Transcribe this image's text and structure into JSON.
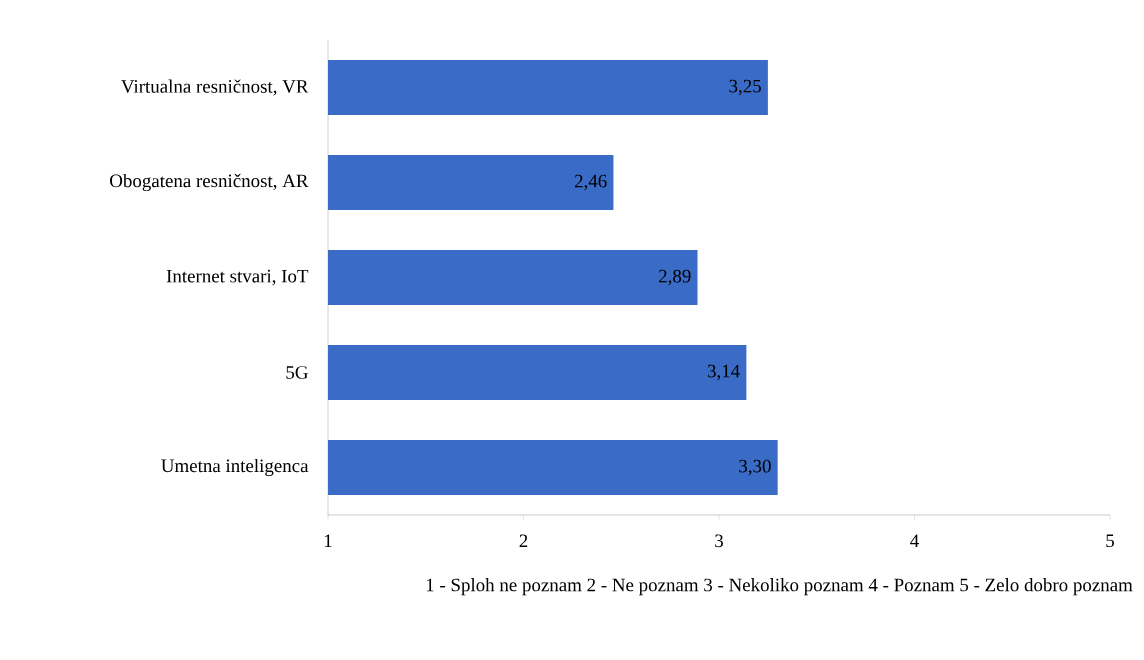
{
  "chart_data": {
    "type": "bar",
    "orientation": "horizontal",
    "categories": [
      "Virtualna resničnost, VR",
      "Obogatena resničnost, AR",
      "Internet stvari, IoT",
      "5G",
      "Umetna inteligenca"
    ],
    "values": [
      3.25,
      2.46,
      2.89,
      3.14,
      3.3
    ],
    "value_labels": [
      "3,25",
      "2,46",
      "2,89",
      "3,14",
      "3,30"
    ],
    "color": "#3a6bc6",
    "xlim": [
      1,
      5
    ],
    "xticks": [
      1,
      2,
      3,
      4,
      5
    ],
    "xlabel": "1 - Sploh ne poznam 2 - Ne poznam 3 - Nekoliko poznam 4 - Poznam 5 - Zelo dobro poznam"
  }
}
